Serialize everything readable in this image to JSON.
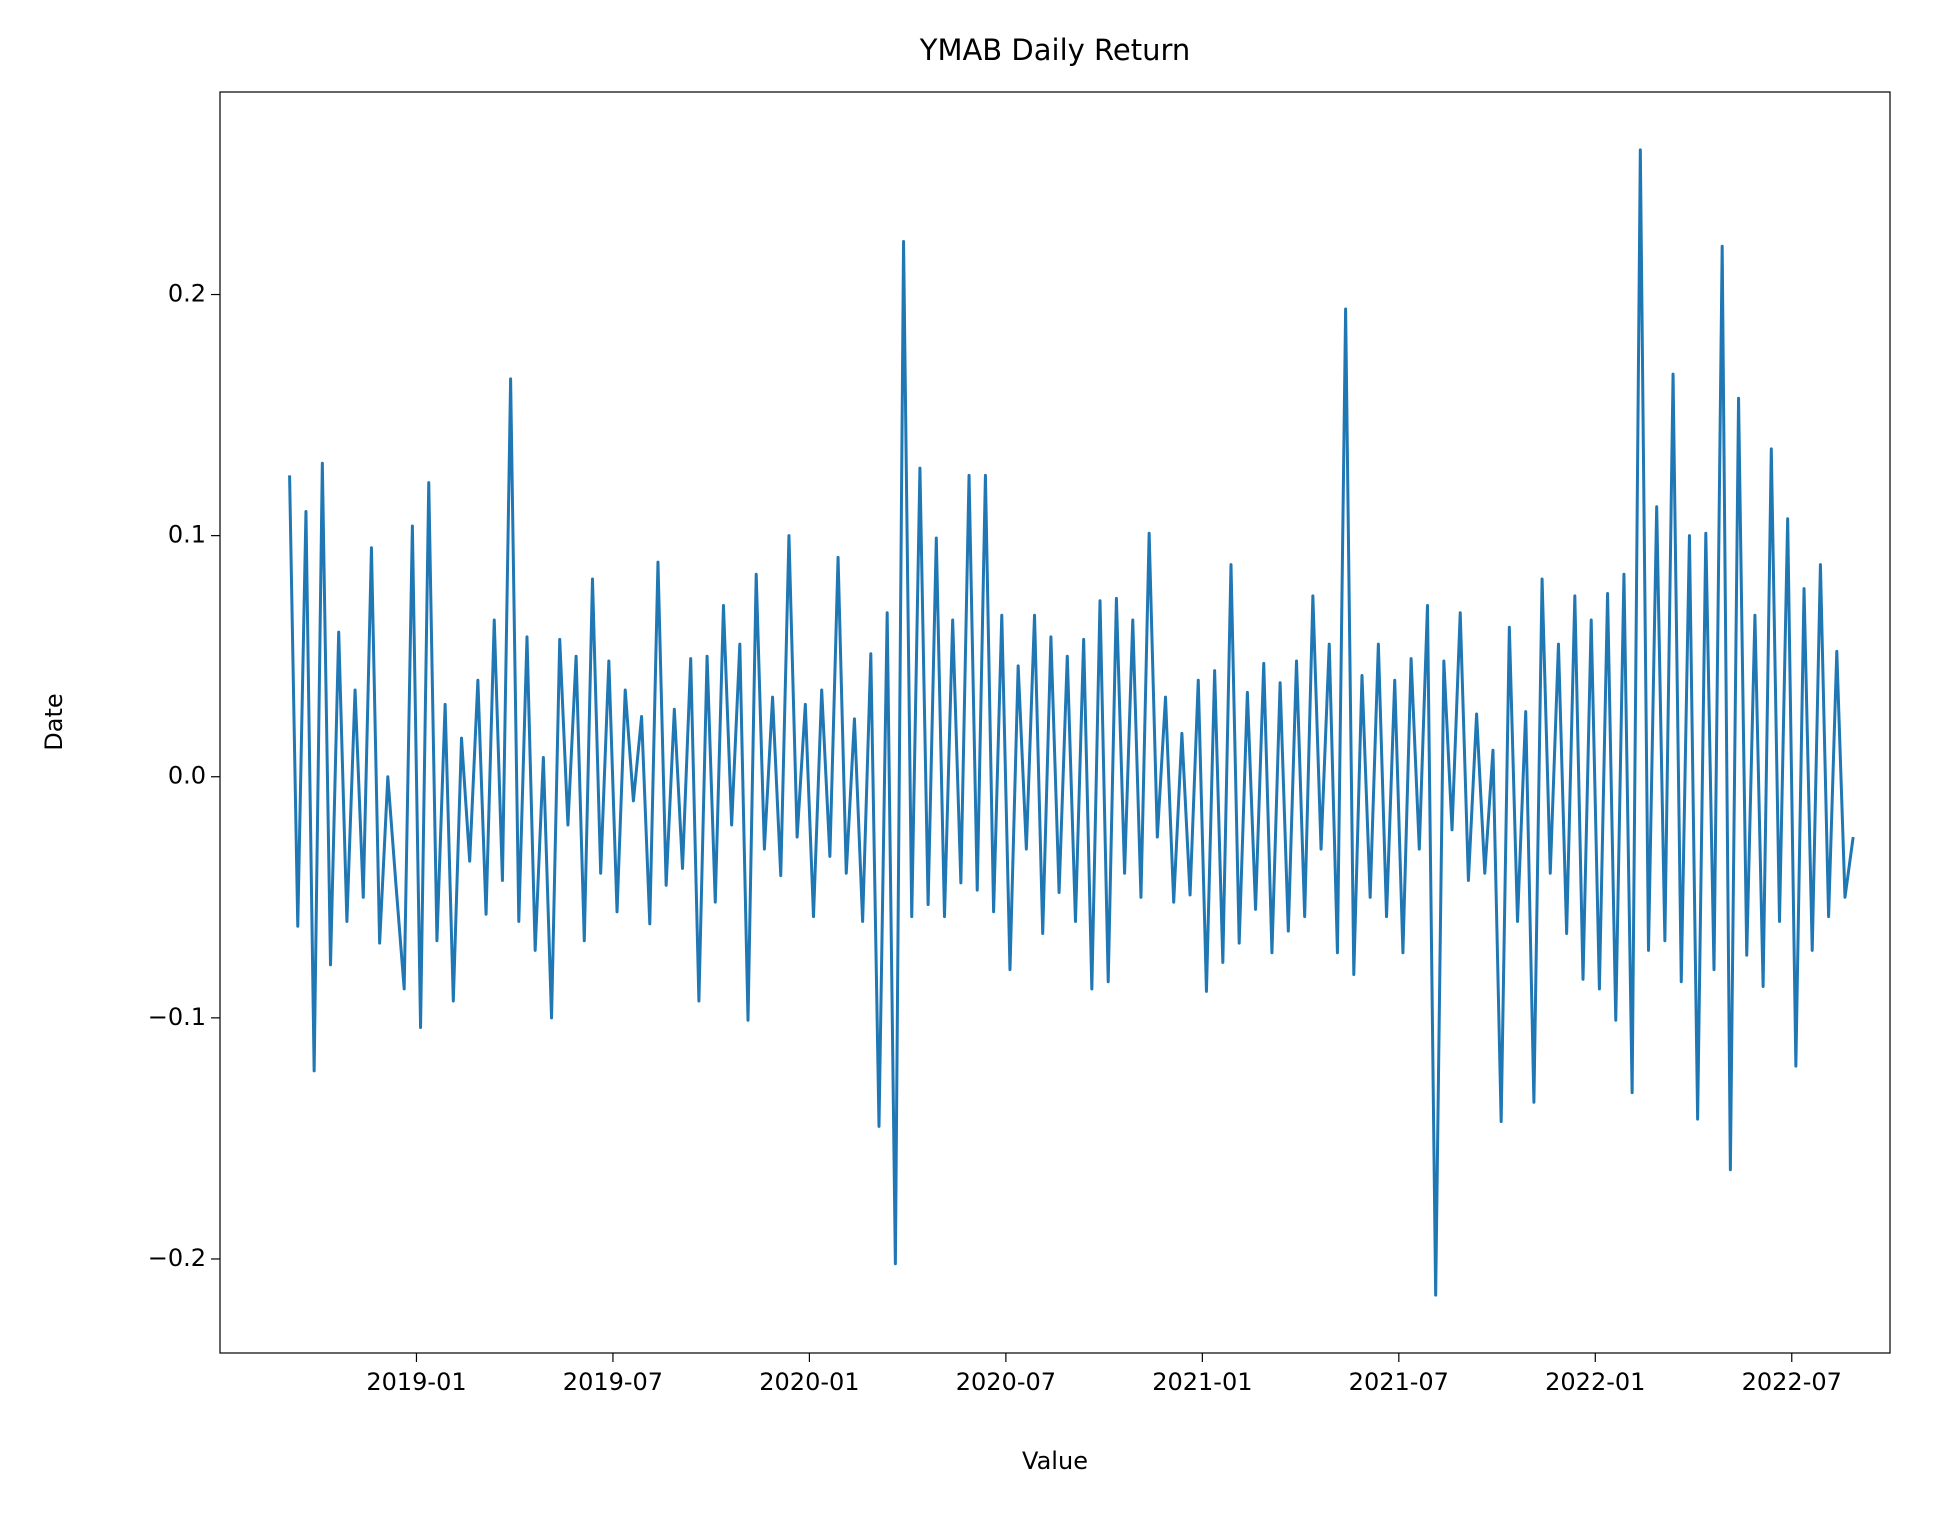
{
  "chart_data": {
    "type": "line",
    "title": "YMAB Daily Return",
    "xlabel": "Value",
    "ylabel": "Date",
    "x": [
      "2018-09",
      "2018-09",
      "2018-09",
      "2018-09",
      "2018-10",
      "2018-10",
      "2018-10",
      "2018-10",
      "2018-11",
      "2018-11",
      "2018-11",
      "2018-11",
      "2018-12",
      "2018-12",
      "2018-12",
      "2018-12",
      "2019-01",
      "2019-01",
      "2019-01",
      "2019-01",
      "2019-02",
      "2019-02",
      "2019-02",
      "2019-02",
      "2019-03",
      "2019-03",
      "2019-03",
      "2019-03",
      "2019-04",
      "2019-04",
      "2019-04",
      "2019-04",
      "2019-05",
      "2019-05",
      "2019-05",
      "2019-05",
      "2019-06",
      "2019-06",
      "2019-06",
      "2019-06",
      "2019-07",
      "2019-07",
      "2019-07",
      "2019-07",
      "2019-08",
      "2019-08",
      "2019-08",
      "2019-08",
      "2019-09",
      "2019-09",
      "2019-09",
      "2019-09",
      "2019-10",
      "2019-10",
      "2019-10",
      "2019-10",
      "2019-11",
      "2019-11",
      "2019-11",
      "2019-11",
      "2019-12",
      "2019-12",
      "2019-12",
      "2019-12",
      "2020-01",
      "2020-01",
      "2020-01",
      "2020-01",
      "2020-02",
      "2020-02",
      "2020-02",
      "2020-02",
      "2020-03",
      "2020-03",
      "2020-03",
      "2020-03",
      "2020-04",
      "2020-04",
      "2020-04",
      "2020-04",
      "2020-05",
      "2020-05",
      "2020-05",
      "2020-05",
      "2020-06",
      "2020-06",
      "2020-06",
      "2020-06",
      "2020-07",
      "2020-07",
      "2020-07",
      "2020-07",
      "2020-08",
      "2020-08",
      "2020-08",
      "2020-08",
      "2020-09",
      "2020-09",
      "2020-09",
      "2020-09",
      "2020-10",
      "2020-10",
      "2020-10",
      "2020-10",
      "2020-11",
      "2020-11",
      "2020-11",
      "2020-11",
      "2020-12",
      "2020-12",
      "2020-12",
      "2020-12",
      "2021-01",
      "2021-01",
      "2021-01",
      "2021-01",
      "2021-02",
      "2021-02",
      "2021-02",
      "2021-02",
      "2021-03",
      "2021-03",
      "2021-03",
      "2021-03",
      "2021-04",
      "2021-04",
      "2021-04",
      "2021-04",
      "2021-05",
      "2021-05",
      "2021-05",
      "2021-05",
      "2021-06",
      "2021-06",
      "2021-06",
      "2021-06",
      "2021-07",
      "2021-07",
      "2021-07",
      "2021-07",
      "2021-08",
      "2021-08",
      "2021-08",
      "2021-08",
      "2021-09",
      "2021-09",
      "2021-09",
      "2021-09",
      "2021-10",
      "2021-10",
      "2021-10",
      "2021-10",
      "2021-11",
      "2021-11",
      "2021-11",
      "2021-11",
      "2021-12",
      "2021-12",
      "2021-12",
      "2021-12",
      "2022-01",
      "2022-01",
      "2022-01",
      "2022-01",
      "2022-02",
      "2022-02",
      "2022-02",
      "2022-02",
      "2022-03",
      "2022-03",
      "2022-03",
      "2022-03",
      "2022-04",
      "2022-04",
      "2022-04",
      "2022-04",
      "2022-05",
      "2022-05",
      "2022-05",
      "2022-05",
      "2022-06",
      "2022-06",
      "2022-06",
      "2022-06",
      "2022-07",
      "2022-07",
      "2022-07",
      "2022-07",
      "2022-08",
      "2022-08",
      "2022-08",
      "2022-08"
    ],
    "series": [
      {
        "name": "Daily Return",
        "color": "#1f77b4",
        "values": [
          0.125,
          -0.062,
          0.11,
          -0.122,
          0.13,
          -0.078,
          0.06,
          -0.06,
          0.036,
          -0.05,
          0.095,
          -0.069,
          0.0,
          -0.045,
          -0.088,
          0.104,
          -0.104,
          0.122,
          -0.068,
          0.03,
          -0.093,
          0.016,
          -0.035,
          0.04,
          -0.057,
          0.065,
          -0.043,
          0.165,
          -0.06,
          0.058,
          -0.072,
          0.008,
          -0.1,
          0.057,
          -0.02,
          0.05,
          -0.068,
          0.082,
          -0.04,
          0.048,
          -0.056,
          0.036,
          -0.01,
          0.025,
          -0.061,
          0.089,
          -0.045,
          0.028,
          -0.038,
          0.049,
          -0.093,
          0.05,
          -0.052,
          0.071,
          -0.02,
          0.055,
          -0.101,
          0.084,
          -0.03,
          0.033,
          -0.041,
          0.1,
          -0.025,
          0.03,
          -0.058,
          0.036,
          -0.033,
          0.091,
          -0.04,
          0.024,
          -0.06,
          0.051,
          -0.145,
          0.068,
          -0.202,
          0.222,
          -0.058,
          0.128,
          -0.053,
          0.099,
          -0.058,
          0.065,
          -0.044,
          0.125,
          -0.047,
          0.125,
          -0.056,
          0.067,
          -0.08,
          0.046,
          -0.03,
          0.067,
          -0.065,
          0.058,
          -0.048,
          0.05,
          -0.06,
          0.057,
          -0.088,
          0.073,
          -0.085,
          0.074,
          -0.04,
          0.065,
          -0.05,
          0.101,
          -0.025,
          0.033,
          -0.052,
          0.018,
          -0.049,
          0.04,
          -0.089,
          0.044,
          -0.077,
          0.088,
          -0.069,
          0.035,
          -0.055,
          0.047,
          -0.073,
          0.039,
          -0.064,
          0.048,
          -0.058,
          0.075,
          -0.03,
          0.055,
          -0.073,
          0.194,
          -0.082,
          0.042,
          -0.05,
          0.055,
          -0.058,
          0.04,
          -0.073,
          0.049,
          -0.03,
          0.071,
          -0.215,
          0.048,
          -0.022,
          0.068,
          -0.043,
          0.026,
          -0.04,
          0.011,
          -0.143,
          0.062,
          -0.06,
          0.027,
          -0.135,
          0.082,
          -0.04,
          0.055,
          -0.065,
          0.075,
          -0.084,
          0.065,
          -0.088,
          0.076,
          -0.101,
          0.084,
          -0.131,
          0.26,
          -0.072,
          0.112,
          -0.068,
          0.167,
          -0.085,
          0.1,
          -0.142,
          0.101,
          -0.08,
          0.22,
          -0.163,
          0.157,
          -0.074,
          0.067,
          -0.087,
          0.136,
          -0.06,
          0.107,
          -0.12,
          0.078,
          -0.072,
          0.088,
          -0.058,
          0.052,
          -0.05,
          -0.025
        ]
      }
    ],
    "xlim": [
      "2018-07",
      "2022-09"
    ],
    "xticks": [
      "2019-01",
      "2019-07",
      "2020-01",
      "2020-07",
      "2021-01",
      "2021-07",
      "2022-01",
      "2022-07"
    ],
    "ylim": [
      -0.239,
      0.284
    ],
    "yticks": [
      {
        "value": -0.2,
        "label": "−0.2"
      },
      {
        "value": -0.1,
        "label": "−0.1"
      },
      {
        "value": 0,
        "label": "0.0"
      },
      {
        "value": 0.1,
        "label": "0.1"
      },
      {
        "value": 0.2,
        "label": "0.2"
      }
    ],
    "grid": false
  }
}
